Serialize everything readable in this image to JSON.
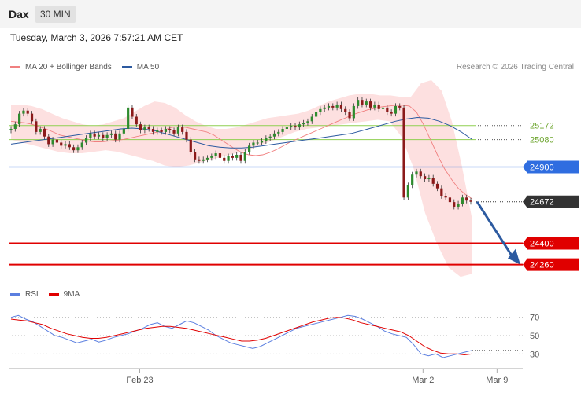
{
  "header": {
    "instrument": "Dax",
    "timeframe": "30 MIN",
    "datetime": "Tuesday, March 3, 2026 7:57:21 AM CET"
  },
  "legend": {
    "items": [
      {
        "label": "MA 20 + Bollinger Bands",
        "color": "#f08080"
      },
      {
        "label": "MA 50",
        "color": "#2c5aa0"
      }
    ],
    "credit": "Research © 2026 Trading Central"
  },
  "rsi_legend": {
    "items": [
      {
        "label": "RSI",
        "color": "#5b7fe0"
      },
      {
        "label": "9MA",
        "color": "#e00000"
      }
    ]
  },
  "colors": {
    "up": "#2e8b2e",
    "down": "#8b1a1a",
    "band_fill": "#fde0e0",
    "ma20": "#f08080",
    "ma50": "#2c5aa0",
    "support": "#e00000",
    "resistance_green": "#8fcf50",
    "resistance_blue": "#2f6de0",
    "current": "#333333",
    "arrow": "#2c5aa0"
  },
  "chart_data": [
    {
      "type": "candlestick",
      "y_range": [
        24150,
        25480
      ],
      "x_tick_labels": [
        {
          "label": "Feb 23",
          "at": 0.255
        },
        {
          "label": "Mar 2",
          "at": 0.806
        },
        {
          "label": "Mar 9",
          "at": 0.95
        }
      ],
      "price_levels": [
        {
          "label": "25172",
          "value": 25172,
          "style": "resistance",
          "color": "#8fcf50"
        },
        {
          "label": "25080",
          "value": 25080,
          "style": "resistance",
          "color": "#8fcf50"
        },
        {
          "label": "24900",
          "value": 24900,
          "style": "pivot",
          "color": "#2f6de0"
        },
        {
          "label": "24672",
          "value": 24672,
          "style": "current",
          "color": "#333333"
        },
        {
          "label": "24400",
          "value": 24400,
          "style": "support",
          "color": "#e00000"
        },
        {
          "label": "24260",
          "value": 24260,
          "style": "support",
          "color": "#e00000"
        }
      ],
      "close": [
        25150,
        25180,
        25250,
        25270,
        25250,
        25200,
        25130,
        25150,
        25100,
        25050,
        25080,
        25060,
        25040,
        25050,
        25030,
        25010,
        25030,
        25060,
        25090,
        25120,
        25100,
        25110,
        25090,
        25110,
        25120,
        25080,
        25120,
        25150,
        25290,
        25230,
        25180,
        25140,
        25160,
        25150,
        25130,
        25140,
        25130,
        25150,
        25140,
        25120,
        25160,
        25130,
        25080,
        25000,
        24950,
        24940,
        24950,
        24960,
        24970,
        24990,
        24960,
        24940,
        24970,
        24960,
        24980,
        24940,
        25000,
        25040,
        25060,
        25060,
        25070,
        25090,
        25100,
        25120,
        25130,
        25150,
        25160,
        25170,
        25160,
        25180,
        25190,
        25200,
        25230,
        25260,
        25280,
        25290,
        25300,
        25290,
        25310,
        25280,
        25260,
        25220,
        25300,
        25340,
        25310,
        25330,
        25290,
        25310,
        25280,
        25290,
        25260,
        25250,
        25300,
        25290,
        24700,
        24780,
        24850,
        24870,
        24840,
        24820,
        24830,
        24790,
        24760,
        24710,
        24700,
        24670,
        24640,
        24660,
        24700,
        24680,
        24672
      ],
      "ma20": [
        25200,
        25195,
        25190,
        25180,
        25165,
        25150,
        25130,
        25110,
        25100,
        25090,
        25080,
        25070,
        25065,
        25065,
        25070,
        25075,
        25080,
        25090,
        25100,
        25110,
        25120,
        25130,
        25145,
        25160,
        25165,
        25160,
        25150,
        25140,
        25130,
        25110,
        25080,
        25050,
        25020,
        24995,
        24980,
        24975,
        24980,
        24995,
        25015,
        25040,
        25065,
        25085,
        25105,
        25125,
        25145,
        25165,
        25185,
        25205,
        25225,
        25245,
        25260,
        25275,
        25285,
        25295,
        25300,
        25305,
        25305,
        25300,
        25260,
        25180,
        25080,
        24980,
        24890,
        24820,
        24760,
        24720,
        24690
      ],
      "ma50": [
        25050,
        25060,
        25070,
        25080,
        25090,
        25100,
        25110,
        25120,
        25130,
        25140,
        25150,
        25155,
        25150,
        25140,
        25120,
        25100,
        25080,
        25060,
        25040,
        25030,
        25025,
        25025,
        25030,
        25040,
        25050,
        25060,
        25070,
        25080,
        25090,
        25100,
        25110,
        25120,
        25140,
        25160,
        25180,
        25200,
        25215,
        25225,
        25220,
        25200,
        25170,
        25130,
        25080
      ],
      "bollinger_upper": [
        25310,
        25310,
        25300,
        25280,
        25250,
        25220,
        25200,
        25180,
        25170,
        25180,
        25200,
        25220,
        25260,
        25300,
        25330,
        25320,
        25290,
        25240,
        25200,
        25170,
        25150,
        25150,
        25160,
        25180,
        25200,
        25220,
        25230,
        25240,
        25250,
        25270,
        25300,
        25330,
        25350,
        25370,
        25380,
        25380,
        25370,
        25370,
        25360,
        25360,
        25450,
        25470,
        25400,
        25200,
        24900,
        24550
      ],
      "bollinger_lower": [
        25080,
        25060,
        25040,
        25020,
        25000,
        24990,
        24990,
        25000,
        25010,
        25000,
        24980,
        24960,
        24940,
        24910,
        24900,
        24910,
        24930,
        24950,
        24970,
        24990,
        25010,
        25040,
        25070,
        25100,
        25130,
        25150,
        25160,
        25170,
        25180,
        25190,
        25200,
        25210,
        25200,
        25100,
        24900,
        24600,
        24400,
        24240,
        24180,
        24200
      ]
    },
    {
      "type": "line",
      "title": "RSI",
      "y_ticks": [
        "70",
        "50",
        "30"
      ],
      "y_range": [
        20,
        80
      ],
      "series": [
        {
          "name": "RSI",
          "color": "#5b7fe0",
          "values": [
            70,
            72,
            68,
            65,
            60,
            55,
            50,
            48,
            45,
            42,
            44,
            46,
            43,
            45,
            48,
            50,
            52,
            55,
            58,
            62,
            64,
            60,
            58,
            62,
            66,
            64,
            60,
            56,
            50,
            46,
            42,
            40,
            38,
            36,
            38,
            42,
            46,
            50,
            54,
            58,
            60,
            62,
            64,
            66,
            68,
            70,
            72,
            71,
            68,
            64,
            60,
            55,
            52,
            50,
            48,
            40,
            30,
            28,
            30,
            26,
            28,
            30,
            32,
            34
          ]
        },
        {
          "name": "9MA",
          "color": "#e00000",
          "values": [
            68,
            67,
            66,
            64,
            62,
            58,
            55,
            52,
            50,
            48,
            47,
            47,
            48,
            50,
            52,
            54,
            56,
            58,
            59,
            60,
            60,
            59,
            58,
            56,
            54,
            52,
            50,
            48,
            46,
            44,
            44,
            45,
            47,
            50,
            53,
            56,
            59,
            62,
            65,
            67,
            69,
            70,
            69,
            67,
            64,
            62,
            60,
            58,
            56,
            54,
            50,
            44,
            38,
            34,
            31,
            30,
            30,
            29,
            30
          ]
        }
      ]
    }
  ]
}
